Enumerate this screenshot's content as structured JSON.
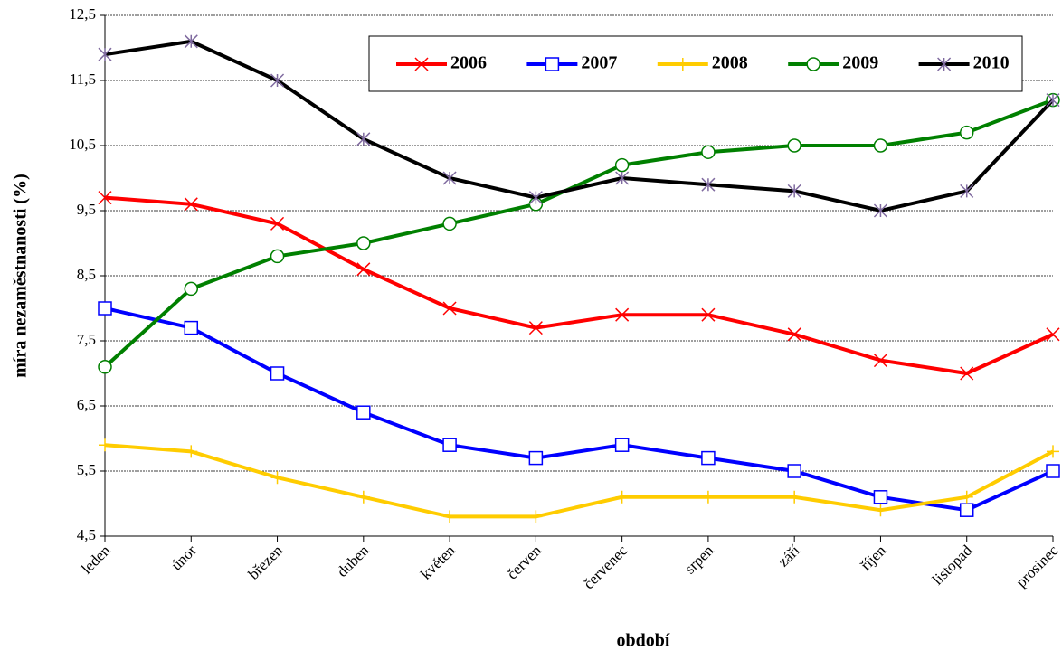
{
  "chart_data": {
    "type": "line",
    "x_label": "období",
    "y_label": "míra nezaměstnanosti (%)",
    "categories": [
      "leden",
      "únor",
      "březen",
      "duben",
      "květen",
      "červen",
      "červenec",
      "srpen",
      "září",
      "říjen",
      "listopad",
      "prosinec"
    ],
    "ylim": [
      4.5,
      12.5
    ],
    "yticks": [
      {
        "value": 4.5,
        "label": "4,5"
      },
      {
        "value": 5.5,
        "label": "5,5"
      },
      {
        "value": 6.5,
        "label": "6,5"
      },
      {
        "value": 7.5,
        "label": "7,5"
      },
      {
        "value": 8.5,
        "label": "8,5"
      },
      {
        "value": 9.5,
        "label": "9,5"
      },
      {
        "value": 10.5,
        "label": "10,5"
      },
      {
        "value": 11.5,
        "label": "11,5"
      },
      {
        "value": 12.5,
        "label": "12,5"
      }
    ],
    "grid": true,
    "series": [
      {
        "name": "2006",
        "color": "#ff0000",
        "marker": "x",
        "values": [
          9.7,
          9.6,
          9.3,
          8.6,
          8.0,
          7.7,
          7.9,
          7.9,
          7.6,
          7.2,
          7.0,
          7.6
        ]
      },
      {
        "name": "2007",
        "color": "#0000ff",
        "marker": "square",
        "values": [
          8.0,
          7.7,
          7.0,
          6.4,
          5.9,
          5.7,
          5.9,
          5.7,
          5.5,
          5.1,
          4.9,
          5.5
        ]
      },
      {
        "name": "2008",
        "color": "#ffcc00",
        "marker": "plus",
        "values": [
          5.9,
          5.8,
          5.4,
          5.1,
          4.8,
          4.8,
          5.1,
          5.1,
          5.1,
          4.9,
          5.1,
          5.8
        ]
      },
      {
        "name": "2009",
        "color": "#008000",
        "marker": "circle",
        "values": [
          7.1,
          8.3,
          8.8,
          9.0,
          9.3,
          9.6,
          10.2,
          10.4,
          10.5,
          10.5,
          10.7,
          11.2
        ]
      },
      {
        "name": "2010",
        "color": "#000000",
        "marker": "star",
        "values": [
          11.9,
          12.1,
          11.5,
          10.6,
          10.0,
          9.7,
          10.0,
          9.9,
          9.8,
          9.5,
          9.8,
          11.2
        ]
      }
    ]
  }
}
